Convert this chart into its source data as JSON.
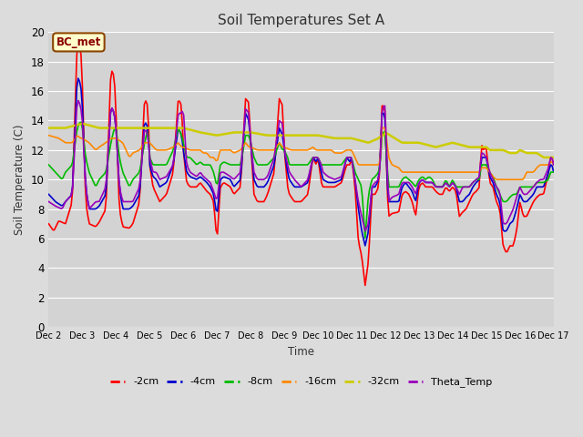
{
  "title": "Soil Temperatures Set A",
  "xlabel": "Time",
  "ylabel": "Soil Temperature (C)",
  "ylim": [
    0,
    20
  ],
  "annotation": "BC_met",
  "series_colors": {
    "-2cm": "#ff0000",
    "-4cm": "#0000cc",
    "-8cm": "#00bb00",
    "-16cm": "#ff8800",
    "-32cm": "#cccc00",
    "Theta_Temp": "#9900bb"
  },
  "x_tick_labels": [
    "Dec 2",
    "Dec 3",
    "Dec 4",
    "Dec 5",
    "Dec 6",
    "Dec 7",
    "Dec 8",
    "Dec 9",
    "Dec 10",
    "Dec 11",
    "Dec 12",
    "Dec 13",
    "Dec 14",
    "Dec 15",
    "Dec 16",
    "Dec 17"
  ],
  "background_color": "#dcdcdc",
  "plot_bg_color": "#d3d3d3",
  "grid_color": "#ffffff",
  "figsize": [
    6.4,
    4.8
  ],
  "dpi": 100
}
